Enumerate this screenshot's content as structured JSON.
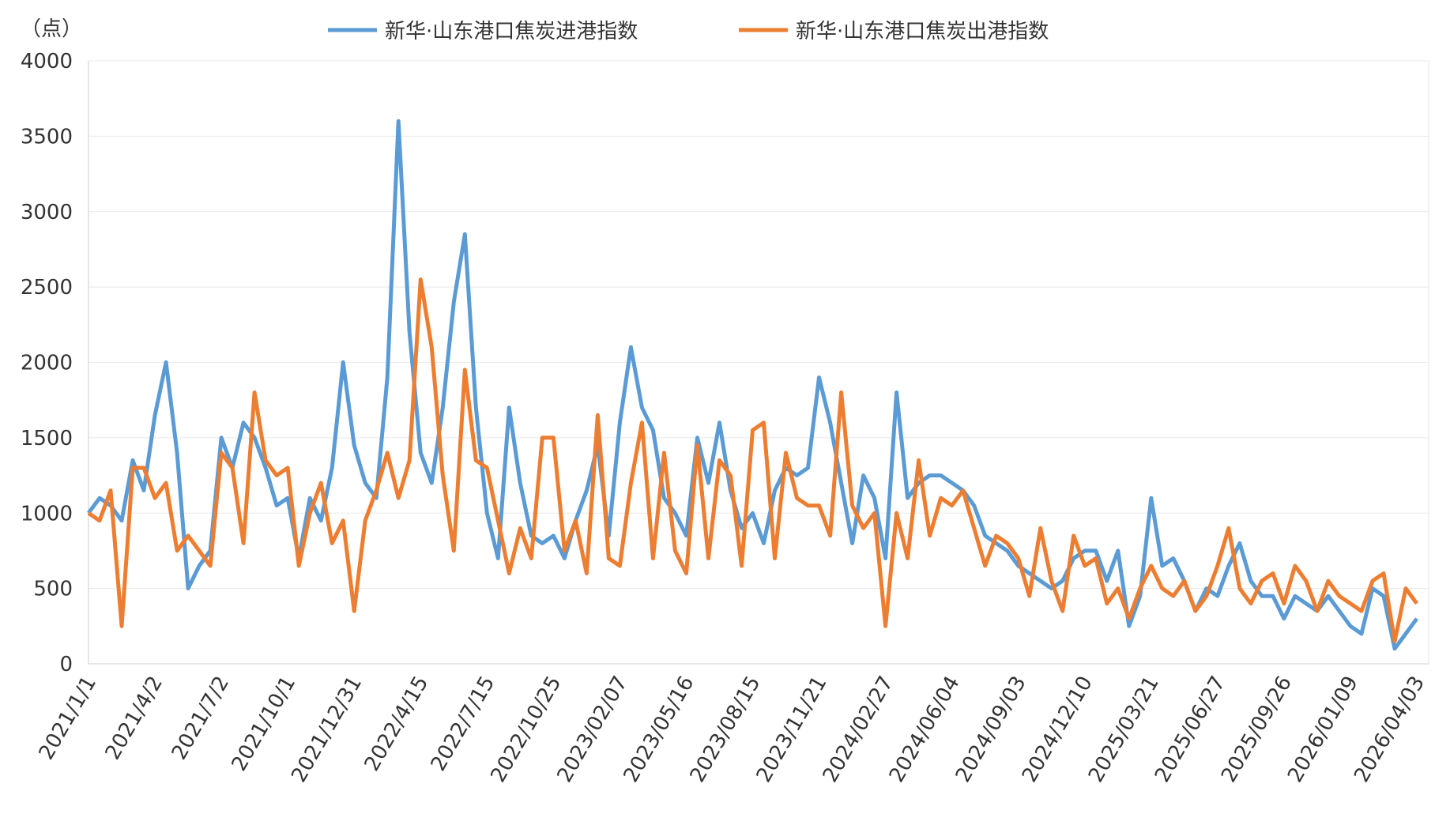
{
  "chart_data": {
    "type": "line",
    "y_unit": "（点）",
    "categories": [
      "2021/1/1",
      null,
      null,
      null,
      null,
      null,
      "2021/4/2",
      null,
      null,
      null,
      null,
      null,
      "2021/7/2",
      null,
      null,
      null,
      null,
      null,
      "2021/10/1",
      null,
      null,
      null,
      null,
      null,
      "2021/12/31",
      null,
      null,
      null,
      null,
      null,
      "2022/4/15",
      null,
      null,
      null,
      null,
      null,
      "2022/7/15",
      null,
      null,
      null,
      null,
      null,
      "2022/10/25",
      null,
      null,
      null,
      null,
      null,
      "2023/02/07",
      null,
      null,
      null,
      null,
      null,
      "2023/05/16",
      null,
      null,
      null,
      null,
      null,
      "2023/08/15",
      null,
      null,
      null,
      null,
      null,
      "2023/11/21",
      null,
      null,
      null,
      null,
      null,
      "2024/02/27",
      null,
      null,
      null,
      null,
      null,
      "2024/06/04",
      null,
      null,
      null,
      null,
      null,
      "2024/09/03",
      null,
      null,
      null,
      null,
      null,
      "2024/12/10",
      null,
      null,
      null,
      null,
      null,
      "2025/03/21",
      null,
      null,
      null,
      null,
      null,
      "2025/06/27",
      null,
      null,
      null,
      null,
      null,
      "2025/09/26",
      null,
      null,
      null,
      null,
      null,
      "2026/01/09",
      null,
      null,
      null,
      null,
      null,
      "2026/04/03"
    ],
    "series": [
      {
        "name": "新华·山东港口焦炭进港指数",
        "color": "#5b9bd5",
        "values": [
          1000,
          1100,
          1050,
          950,
          1350,
          1150,
          1650,
          2000,
          1400,
          500,
          650,
          750,
          1500,
          1300,
          1600,
          1500,
          1300,
          1050,
          1100,
          700,
          1100,
          950,
          1300,
          2000,
          1450,
          1200,
          1100,
          1900,
          3600,
          2200,
          1400,
          1200,
          1700,
          2400,
          2850,
          1700,
          1000,
          700,
          1700,
          1200,
          850,
          800,
          850,
          700,
          950,
          1150,
          1450,
          850,
          1600,
          2100,
          1700,
          1550,
          1100,
          1000,
          850,
          1500,
          1200,
          1600,
          1150,
          900,
          1000,
          800,
          1150,
          1300,
          1250,
          1300,
          1900,
          1600,
          1200,
          800,
          1250,
          1100,
          700,
          1800,
          1100,
          1200,
          1250,
          1250,
          1200,
          1150,
          1050,
          850,
          800,
          750,
          650,
          600,
          550,
          500,
          550,
          700,
          750,
          750,
          550,
          750,
          250,
          450,
          1100,
          650,
          700,
          550,
          350,
          500,
          450,
          650,
          800,
          550,
          450,
          450,
          300,
          450,
          400,
          350,
          450,
          350,
          250,
          200,
          500,
          450,
          100,
          200,
          300
        ]
      },
      {
        "name": "新华·山东港口焦炭出港指数",
        "color": "#ed7d31",
        "values": [
          1000,
          950,
          1150,
          250,
          1300,
          1300,
          1100,
          1200,
          750,
          850,
          750,
          650,
          1400,
          1300,
          800,
          1800,
          1350,
          1250,
          1300,
          650,
          1000,
          1200,
          800,
          950,
          350,
          950,
          1150,
          1400,
          1100,
          1350,
          2550,
          2100,
          1250,
          750,
          1950,
          1350,
          1300,
          950,
          600,
          900,
          700,
          1500,
          1500,
          750,
          950,
          600,
          1650,
          700,
          650,
          1200,
          1600,
          700,
          1400,
          750,
          600,
          1450,
          700,
          1350,
          1250,
          650,
          1550,
          1600,
          700,
          1400,
          1100,
          1050,
          1050,
          850,
          1800,
          1050,
          900,
          1000,
          250,
          1000,
          700,
          1350,
          850,
          1100,
          1050,
          1150,
          900,
          650,
          850,
          800,
          700,
          450,
          900,
          550,
          350,
          850,
          650,
          700,
          400,
          500,
          300,
          500,
          650,
          500,
          450,
          550,
          350,
          450,
          650,
          900,
          500,
          400,
          550,
          600,
          400,
          650,
          550,
          350,
          550,
          450,
          400,
          350,
          550,
          600,
          150,
          500,
          400
        ]
      }
    ],
    "ylim": [
      0,
      4000
    ],
    "yticks": [
      0,
      500,
      1000,
      1500,
      2000,
      2500,
      3000,
      3500,
      4000
    ],
    "grid": true
  }
}
